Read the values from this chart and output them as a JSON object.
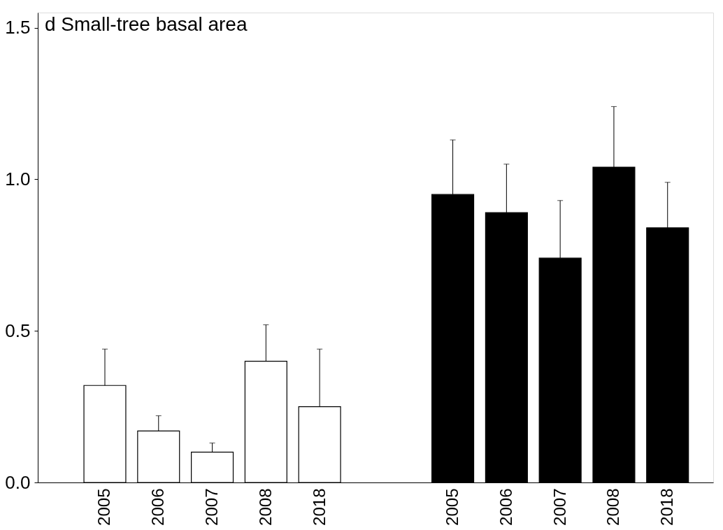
{
  "chart_data": {
    "type": "bar",
    "title": "d Small-tree basal area",
    "categories": [
      "2005",
      "2006",
      "2007",
      "2008",
      "2018",
      "2005",
      "2006",
      "2007",
      "2008",
      "2018"
    ],
    "series": [
      {
        "color": "#ffffff",
        "values": [
          0.32,
          0.17,
          0.1,
          0.4,
          0.25,
          null,
          null,
          null,
          null,
          null
        ],
        "errors": [
          [
            0.32,
            0.44
          ],
          [
            0.17,
            0.22
          ],
          [
            0.1,
            0.13
          ],
          [
            0.4,
            0.52
          ],
          [
            0.25,
            0.44
          ],
          null,
          null,
          null,
          null,
          null
        ]
      },
      {
        "color": "#000000",
        "values": [
          null,
          null,
          null,
          null,
          null,
          0.95,
          0.89,
          0.74,
          1.04,
          0.84
        ],
        "errors": [
          null,
          null,
          null,
          null,
          null,
          [
            0.95,
            1.13
          ],
          [
            0.89,
            1.05
          ],
          [
            0.74,
            0.93
          ],
          [
            1.04,
            1.24
          ],
          [
            0.84,
            0.99
          ]
        ]
      }
    ],
    "ylim": [
      0,
      1.55
    ],
    "yticks": [
      {
        "value": 0,
        "label": "0.0"
      },
      {
        "value": 0.5,
        "label": "0.5"
      },
      {
        "value": 1.0,
        "label": "1.0"
      },
      {
        "value": 1.5,
        "label": "1.5"
      }
    ],
    "grid": false,
    "legend": false
  }
}
